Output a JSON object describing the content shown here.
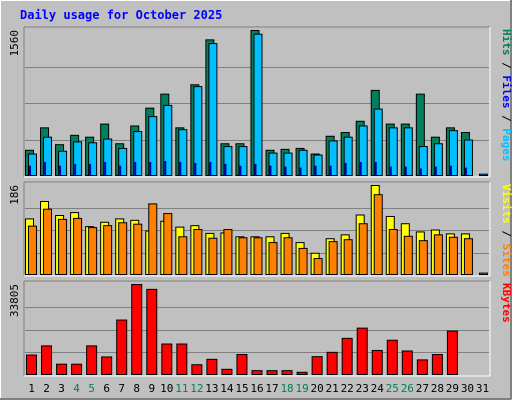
{
  "chart_data": {
    "type": "bar",
    "title": "Daily usage for October 2025",
    "days": [
      "1",
      "2",
      "3",
      "4",
      "5",
      "6",
      "7",
      "8",
      "9",
      "10",
      "11",
      "12",
      "13",
      "14",
      "15",
      "16",
      "17",
      "18",
      "19",
      "20",
      "21",
      "22",
      "23",
      "24",
      "25",
      "26",
      "27",
      "28",
      "29",
      "30",
      "31"
    ],
    "weekend_days": [
      4,
      5,
      11,
      12,
      18,
      19,
      25,
      26
    ],
    "colors": {
      "background": "#c0c0c0",
      "hits": "#00805c",
      "files": "#00c0ff",
      "pages": "#00e0ff",
      "sites": "#ff8000",
      "visits": "#ffff00",
      "kbytes": "#ff0000",
      "title": "#0000ff",
      "weekend": "#00805c",
      "grid": "#808080"
    },
    "panels": [
      {
        "id": "hits_files_pages",
        "max_label": "1560",
        "ylim": [
          0,
          1560
        ],
        "legend": [
          {
            "label": "Pages",
            "color": "#00c0ff"
          },
          {
            "label": "Files",
            "color": "#0000ff"
          },
          {
            "label": "Hits",
            "color": "#00805c"
          }
        ],
        "series": [
          {
            "name": "Hits",
            "values": [
              280,
              520,
              340,
              440,
              420,
              560,
              350,
              540,
              730,
              880,
              520,
              980,
              1460,
              350,
              350,
              1560,
              280,
              290,
              300,
              240,
              430,
              470,
              590,
              920,
              560,
              560,
              880,
              420,
              520,
              470,
              0
            ]
          },
          {
            "name": "Files",
            "values": [
              240,
              420,
              270,
              370,
              360,
              400,
              300,
              480,
              640,
              760,
              500,
              960,
              1420,
              320,
              320,
              1520,
              250,
              250,
              280,
              230,
              380,
              420,
              540,
              720,
              520,
              520,
              320,
              350,
              490,
              390,
              25
            ]
          },
          {
            "name": "Pages",
            "values": [
              110,
              150,
              110,
              130,
              130,
              150,
              110,
              150,
              150,
              160,
              150,
              140,
              150,
              130,
              110,
              130,
              110,
              100,
              90,
              110,
              110,
              140,
              150,
              150,
              100,
              100,
              80,
              100,
              110,
              90,
              0
            ]
          }
        ]
      },
      {
        "id": "visits_sites",
        "max_label": "186",
        "ylim": [
          0,
          186
        ],
        "legend": [
          {
            "label": "Sites",
            "color": "#ff8000"
          },
          {
            "label": "Visits",
            "color": "#ffff00"
          }
        ],
        "series": [
          {
            "name": "Visits",
            "values": [
              117,
              153,
              124,
              130,
              101,
              110,
              117,
              114,
              92,
              112,
              100,
              103,
              87,
              88,
              80,
              80,
              80,
              87,
              68,
              46,
              76,
              84,
              125,
              186,
              122,
              107,
              90,
              94,
              86,
              86,
              0
            ]
          },
          {
            "name": "Sites",
            "values": [
              102,
              137,
              116,
              118,
              99,
              103,
              109,
              106,
              148,
              128,
              80,
              95,
              77,
              95,
              78,
              78,
              68,
              78,
              56,
              35,
              70,
              74,
              107,
              167,
              95,
              81,
              72,
              84,
              79,
              76,
              5
            ]
          }
        ]
      },
      {
        "id": "kbytes",
        "max_label": "33805",
        "ylim": [
          0,
          33805
        ],
        "legend": [
          {
            "label": "KBytes",
            "color": "#ff0000"
          }
        ],
        "series": [
          {
            "name": "KBytes",
            "values": [
              7600,
              11000,
              4200,
              4200,
              11000,
              6900,
              20600,
              33800,
              32000,
              11700,
              11700,
              4000,
              6000,
              2300,
              7800,
              1800,
              1800,
              1800,
              1200,
              7000,
              8600,
              13800,
              17600,
              9300,
              13100,
              9100,
              5800,
              7800,
              16500,
              0,
              0
            ]
          }
        ]
      }
    ]
  }
}
